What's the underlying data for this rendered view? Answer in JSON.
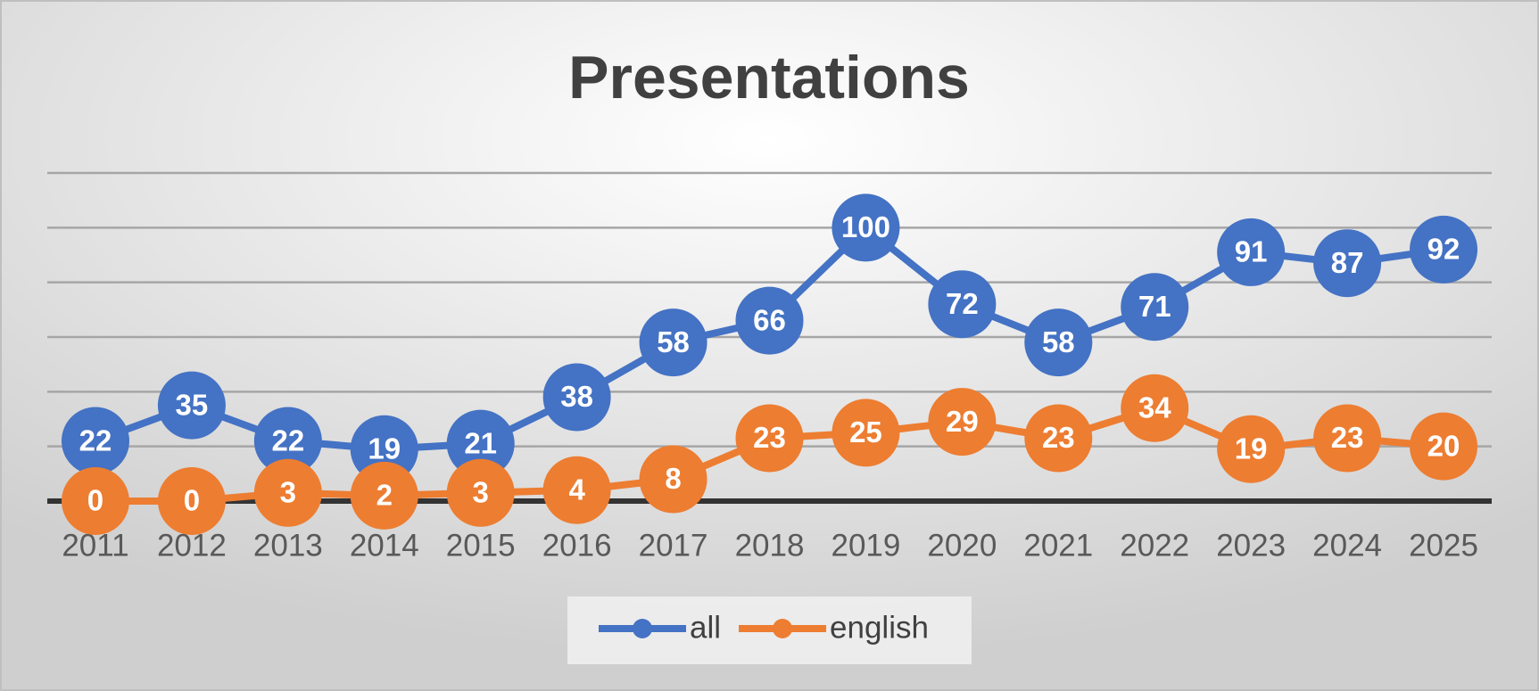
{
  "chart_data": {
    "type": "line",
    "title": "Presentations",
    "categories": [
      "2011",
      "2012",
      "2013",
      "2014",
      "2015",
      "2016",
      "2017",
      "2018",
      "2019",
      "2020",
      "2021",
      "2022",
      "2023",
      "2024",
      "2025"
    ],
    "series": [
      {
        "name": "all",
        "color": "#4472c4",
        "values": [
          22,
          35,
          22,
          19,
          21,
          38,
          58,
          66,
          100,
          72,
          58,
          71,
          91,
          87,
          92
        ]
      },
      {
        "name": "english",
        "color": "#ed7d31",
        "values": [
          0,
          0,
          3,
          2,
          3,
          4,
          8,
          23,
          25,
          29,
          23,
          34,
          19,
          23,
          20
        ]
      }
    ],
    "ylim": [
      0,
      120
    ],
    "yticks": [
      0,
      20,
      40,
      60,
      80,
      100,
      120
    ],
    "grid": true,
    "legend": "bottom"
  }
}
